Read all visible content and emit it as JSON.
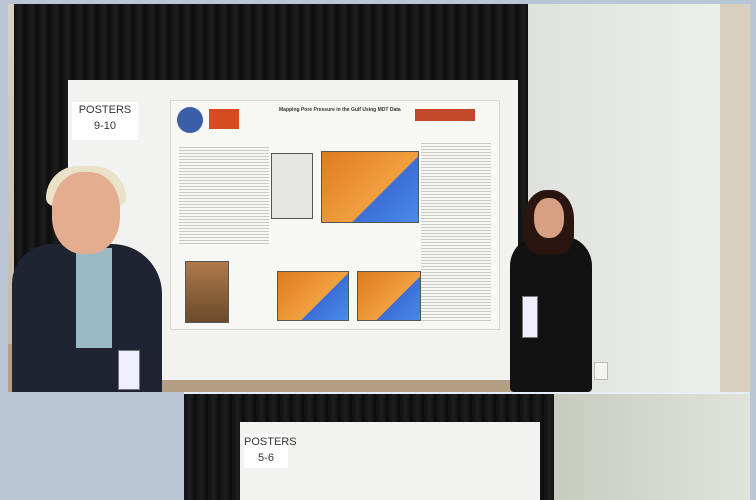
{
  "photos": {
    "top": {
      "poster_label_line1": "POSTERS",
      "poster_label_line2": "9-10",
      "poster_title": "Mapping Pore Pressure in the Gulf Using MDT Data"
    },
    "bottom": {
      "poster_label_line1": "POSTERS",
      "poster_label_line2": "5-6"
    }
  },
  "colors": {
    "background": "#b9c6d6",
    "curtain": "#111111",
    "map_orange": "#e07a20",
    "map_blue": "#3a6fd8"
  }
}
